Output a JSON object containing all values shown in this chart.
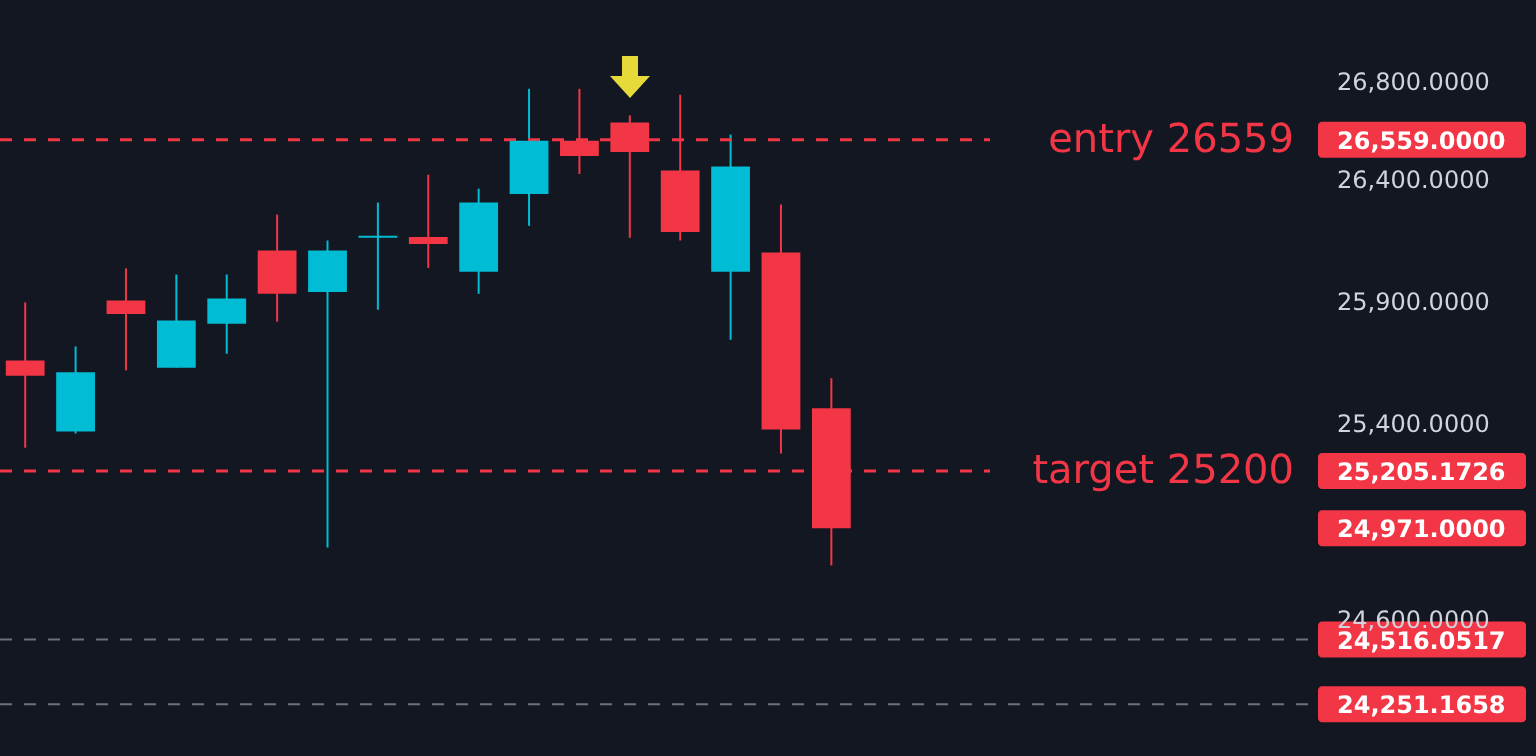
{
  "chart_data": {
    "type": "candlestick",
    "categories": [
      null,
      null,
      null,
      null,
      null,
      null,
      null,
      null,
      null,
      null,
      null,
      null,
      null,
      null,
      null,
      null,
      null,
      null,
      null,
      null,
      null,
      null,
      null,
      null,
      null,
      null
    ],
    "ohlc": [
      [
        25657,
        25894,
        25300,
        25594
      ],
      [
        25366,
        25714,
        25358,
        25608
      ],
      [
        25902,
        26033,
        25616,
        25847
      ],
      [
        25627,
        26008,
        25627,
        25820
      ],
      [
        25807,
        26008,
        25684,
        25910
      ],
      [
        26106,
        26253,
        25815,
        25929
      ],
      [
        25937,
        26147,
        24892,
        26106
      ],
      [
        26158,
        26302,
        25864,
        26166
      ],
      [
        26161,
        26416,
        26035,
        26133
      ],
      [
        26019,
        26359,
        25929,
        26302
      ],
      [
        26337,
        26767,
        26207,
        26555
      ],
      [
        26555,
        26767,
        26419,
        26492
      ],
      [
        26629,
        26659,
        26158,
        26509
      ],
      [
        26433,
        26743,
        26147,
        26182
      ],
      [
        26019,
        26580,
        25741,
        26449
      ],
      [
        26098,
        26294,
        25276,
        25374
      ],
      [
        25461,
        25584,
        24819,
        24971
      ],
      null,
      null,
      null,
      null,
      null,
      null,
      null,
      null,
      null
    ],
    "colors": [
      "#f23645",
      "#00bcd4",
      "#f23645",
      "#00bcd4",
      "#00bcd4",
      "#f23645",
      "#00bcd4",
      "#00bcd4",
      "#f23645",
      "#00bcd4",
      "#00bcd4",
      "#f23645",
      "#f23645",
      "#f23645",
      "#00bcd4",
      "#f23645",
      "#f23645",
      null,
      null,
      null,
      null,
      null,
      null,
      null,
      null,
      null
    ],
    "ylim": [
      24040,
      27130
    ],
    "yticks": [
      {
        "value": 24251.1658,
        "label": "24,251.1658"
      },
      {
        "value": 24516.0517,
        "label": "24,516.0517"
      },
      {
        "value": 24600,
        "label": "24,600.0000"
      },
      {
        "value": 24971,
        "label": "24,971.0000"
      },
      {
        "value": 25205.1726,
        "label": "25,205.1726"
      },
      {
        "value": 25400,
        "label": "25,400.0000"
      },
      {
        "value": 25900,
        "label": "25,900.0000"
      },
      {
        "value": 26400,
        "label": "26,400.0000"
      },
      {
        "value": 26559,
        "label": "26,559.0000"
      },
      {
        "value": 26800,
        "label": "26,800.0000"
      }
    ],
    "tick_labels": "y",
    "ref_lines": [
      {
        "axis": "y",
        "value": 26559,
        "label": "entry 26559",
        "color": "#f23645",
        "line_style": "dashed"
      },
      {
        "axis": "y",
        "value": 25205.1726,
        "label": "target 25200",
        "color": "#f23645",
        "line_style": "dashed"
      },
      {
        "axis": "y",
        "value": 24516.0517,
        "color": "#9598a1",
        "line_style": "dashed"
      },
      {
        "axis": "y",
        "value": 24251.1658,
        "color": "#9598a1",
        "line_style": "dashed"
      }
    ]
  }
}
